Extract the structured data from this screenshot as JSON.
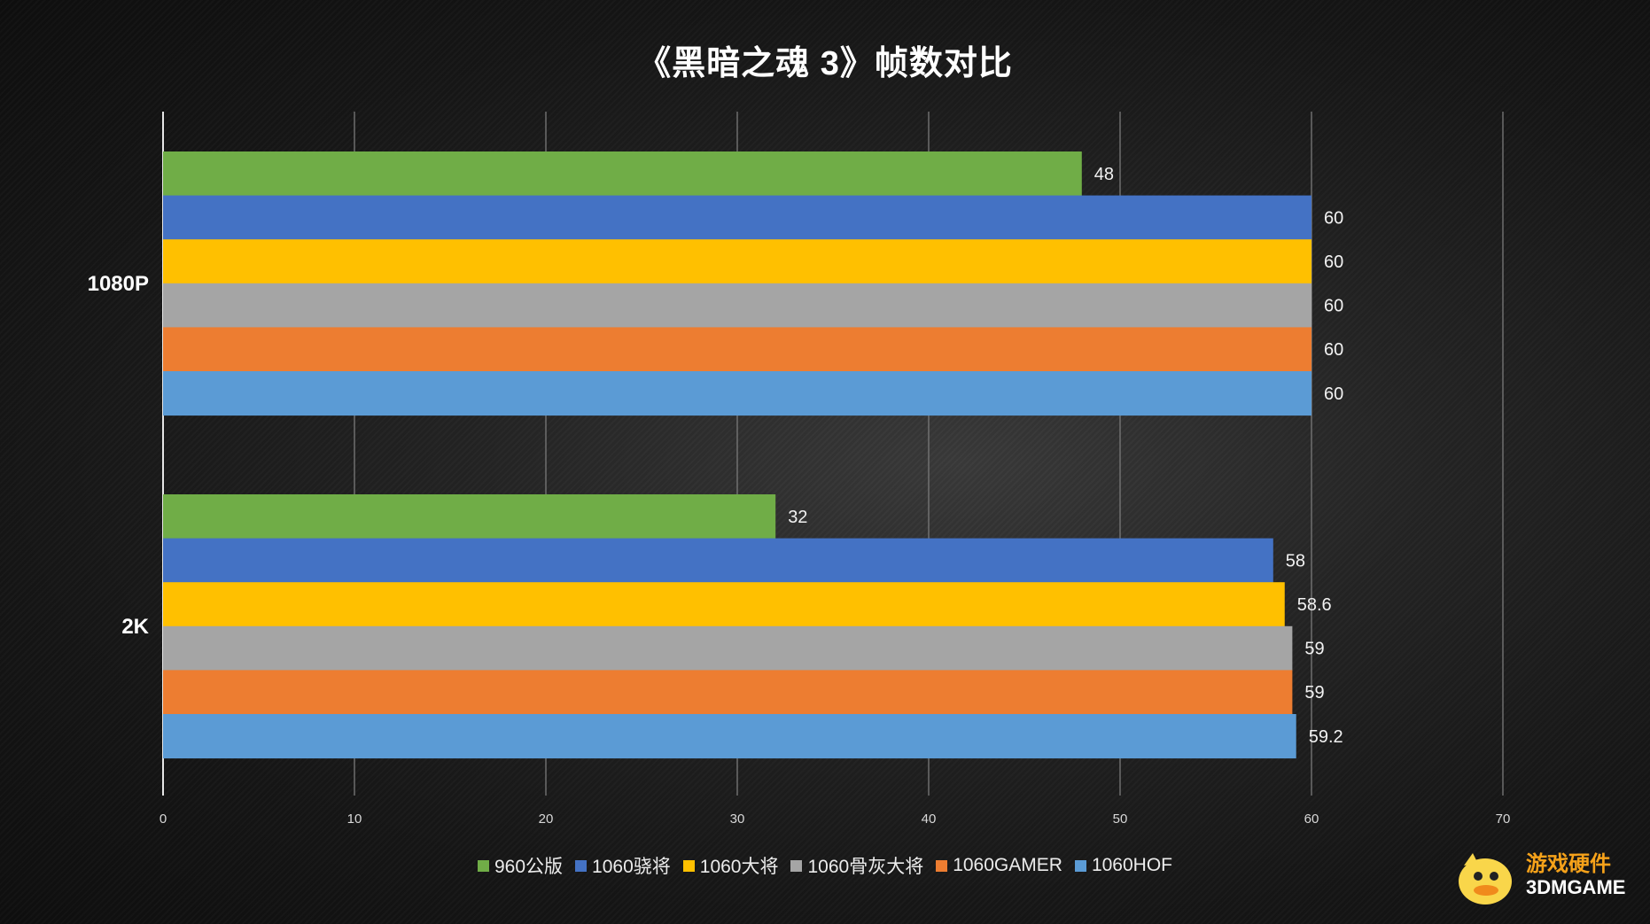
{
  "chart_data": {
    "type": "bar",
    "orientation": "horizontal",
    "title": "《黑暗之魂 3》帧数对比",
    "categories": [
      "1080P",
      "2K"
    ],
    "series": [
      {
        "name": "960公版",
        "color": "#70ad47",
        "values": [
          48,
          32
        ]
      },
      {
        "name": "1060骁将",
        "color": "#4472c4",
        "values": [
          60,
          58
        ]
      },
      {
        "name": "1060大将",
        "color": "#ffc000",
        "values": [
          60,
          58.6
        ]
      },
      {
        "name": "1060骨灰大将",
        "color": "#a5a5a5",
        "values": [
          60,
          59
        ]
      },
      {
        "name": "1060GAMER",
        "color": "#ed7d31",
        "values": [
          60,
          59
        ]
      },
      {
        "name": "1060HOF",
        "color": "#5b9bd5",
        "values": [
          60,
          59.2
        ]
      }
    ],
    "value_labels": [
      [
        "48",
        "60",
        "60",
        "60",
        "60",
        "60"
      ],
      [
        "32",
        "58",
        "58.6",
        "59",
        "59",
        "59.2"
      ]
    ],
    "xlim": [
      0,
      70
    ],
    "xticks": [
      "0",
      "10",
      "20",
      "30",
      "40",
      "50",
      "60",
      "70"
    ],
    "grid": true,
    "legend_position": "bottom"
  },
  "watermark": {
    "line1": "游戏硬件",
    "line2": "3DMGAME"
  }
}
